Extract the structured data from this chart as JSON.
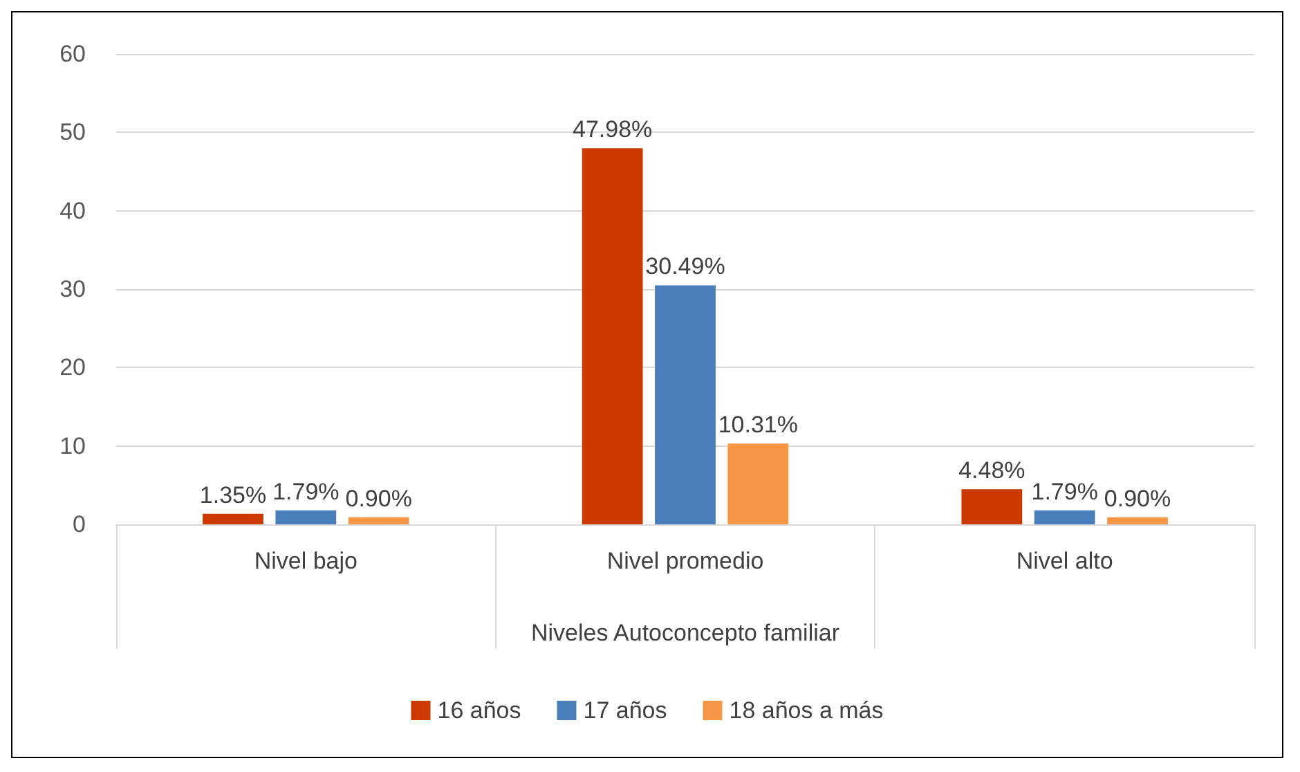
{
  "chart_data": {
    "type": "bar",
    "xlabel": "Niveles Autoconcepto familiar",
    "categories": [
      "Nivel bajo",
      "Nivel promedio",
      "Nivel alto"
    ],
    "series": [
      {
        "name": "16 años",
        "color": "#cc3a00",
        "values": [
          1.35,
          47.98,
          4.48
        ],
        "value_labels": [
          "1.35%",
          "47.98%",
          "4.48%"
        ]
      },
      {
        "name": "17 años",
        "color": "#4a7ebb",
        "values": [
          1.79,
          30.49,
          1.79
        ],
        "value_labels": [
          "1.79%",
          "30.49%",
          "1.79%"
        ]
      },
      {
        "name": "18 años a más",
        "color": "#f79646",
        "values": [
          0.9,
          10.31,
          0.9
        ],
        "value_labels": [
          "0.90%",
          "10.31%",
          "0.90%"
        ]
      }
    ],
    "ylim": [
      0,
      60
    ],
    "yticks": [
      0,
      10,
      20,
      30,
      40,
      50,
      60
    ],
    "grid": "y",
    "legend": "bottom"
  }
}
